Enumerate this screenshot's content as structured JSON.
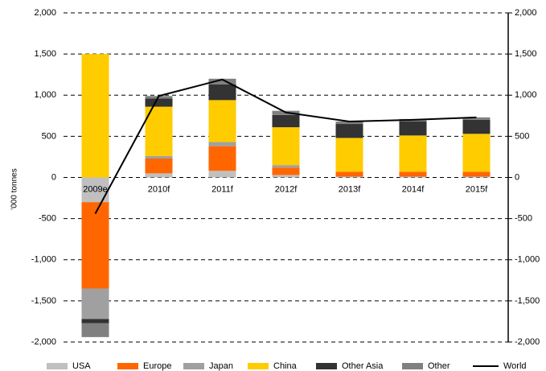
{
  "chart_data": {
    "type": "bar",
    "stacked": true,
    "y_label": "'000 tonnes",
    "categories": [
      "2009e",
      "2010f",
      "2011f",
      "2012f",
      "2013f",
      "2014f",
      "2015f"
    ],
    "series": [
      {
        "name": "USA",
        "color": "#c0c0c0",
        "values": [
          -300,
          50,
          80,
          30,
          10,
          10,
          10
        ]
      },
      {
        "name": "Europe",
        "color": "#ff6600",
        "values": [
          -1050,
          180,
          300,
          90,
          60,
          60,
          60
        ]
      },
      {
        "name": "Japan",
        "color": "#a0a0a0",
        "values": [
          -370,
          30,
          50,
          30,
          0,
          0,
          0
        ]
      },
      {
        "name": "China",
        "color": "#ffcc00",
        "values": [
          1500,
          600,
          510,
          460,
          410,
          440,
          460
        ]
      },
      {
        "name": "Other Asia",
        "color": "#333333",
        "values": [
          -50,
          100,
          190,
          150,
          170,
          170,
          170
        ]
      },
      {
        "name": "Other",
        "color": "#808080",
        "values": [
          -170,
          30,
          70,
          50,
          30,
          30,
          30
        ]
      },
      {
        "name": "World",
        "color": "#000000",
        "type": "line",
        "values": [
          -440,
          990,
          1190,
          790,
          680,
          700,
          730
        ]
      }
    ],
    "ylim": [
      -2000,
      2000
    ],
    "yticks": [
      {
        "value": -2000,
        "label": "-2,000"
      },
      {
        "value": -1500,
        "label": "-1,500"
      },
      {
        "value": -1000,
        "label": "-1,000"
      },
      {
        "value": -500,
        "label": "-500"
      },
      0,
      {
        "value": 500,
        "label": "500"
      },
      {
        "value": 1000,
        "label": "1,000"
      },
      {
        "value": 1500,
        "label": "1,500"
      },
      {
        "value": 2000,
        "label": "2,000"
      }
    ],
    "y2lim": [
      -2000,
      2000
    ],
    "y2ticks": [
      {
        "value": -2000,
        "label": "-2,000"
      },
      {
        "value": -1500,
        "label": "-1,500"
      },
      {
        "value": -1000,
        "label": "-1,000"
      },
      {
        "value": -500,
        "label": "-500"
      },
      0,
      {
        "value": 500,
        "label": "500"
      },
      {
        "value": 1000,
        "label": "1,000"
      },
      {
        "value": 1500,
        "label": "1,500"
      },
      {
        "value": 2000,
        "label": "2,000"
      }
    ],
    "grid": true,
    "legend": "bottom"
  }
}
